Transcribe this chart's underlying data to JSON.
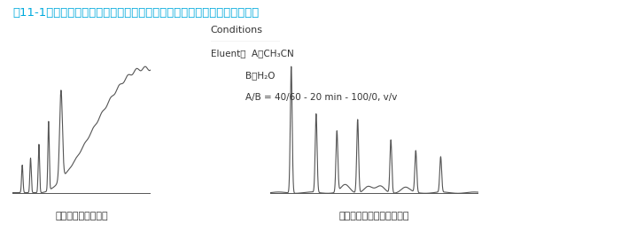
{
  "title": "図11‑1　溶媒のグレードとグラジエント分析におけるベースラインの関係",
  "title_color": "#00aadd",
  "bg_color": "#ffffff",
  "conditions_title": "Conditions",
  "conditions_lines": [
    "Eluent：  A）CH₃CN",
    "            B）H₂O",
    "            A/B = 40/60 - 20 min - 100/0, v/v"
  ],
  "label_left": "特級アセトニトリル",
  "label_right": "ＨＰＬＣ用アセトニトリル",
  "line_color": "#555555",
  "font_color": "#333333"
}
